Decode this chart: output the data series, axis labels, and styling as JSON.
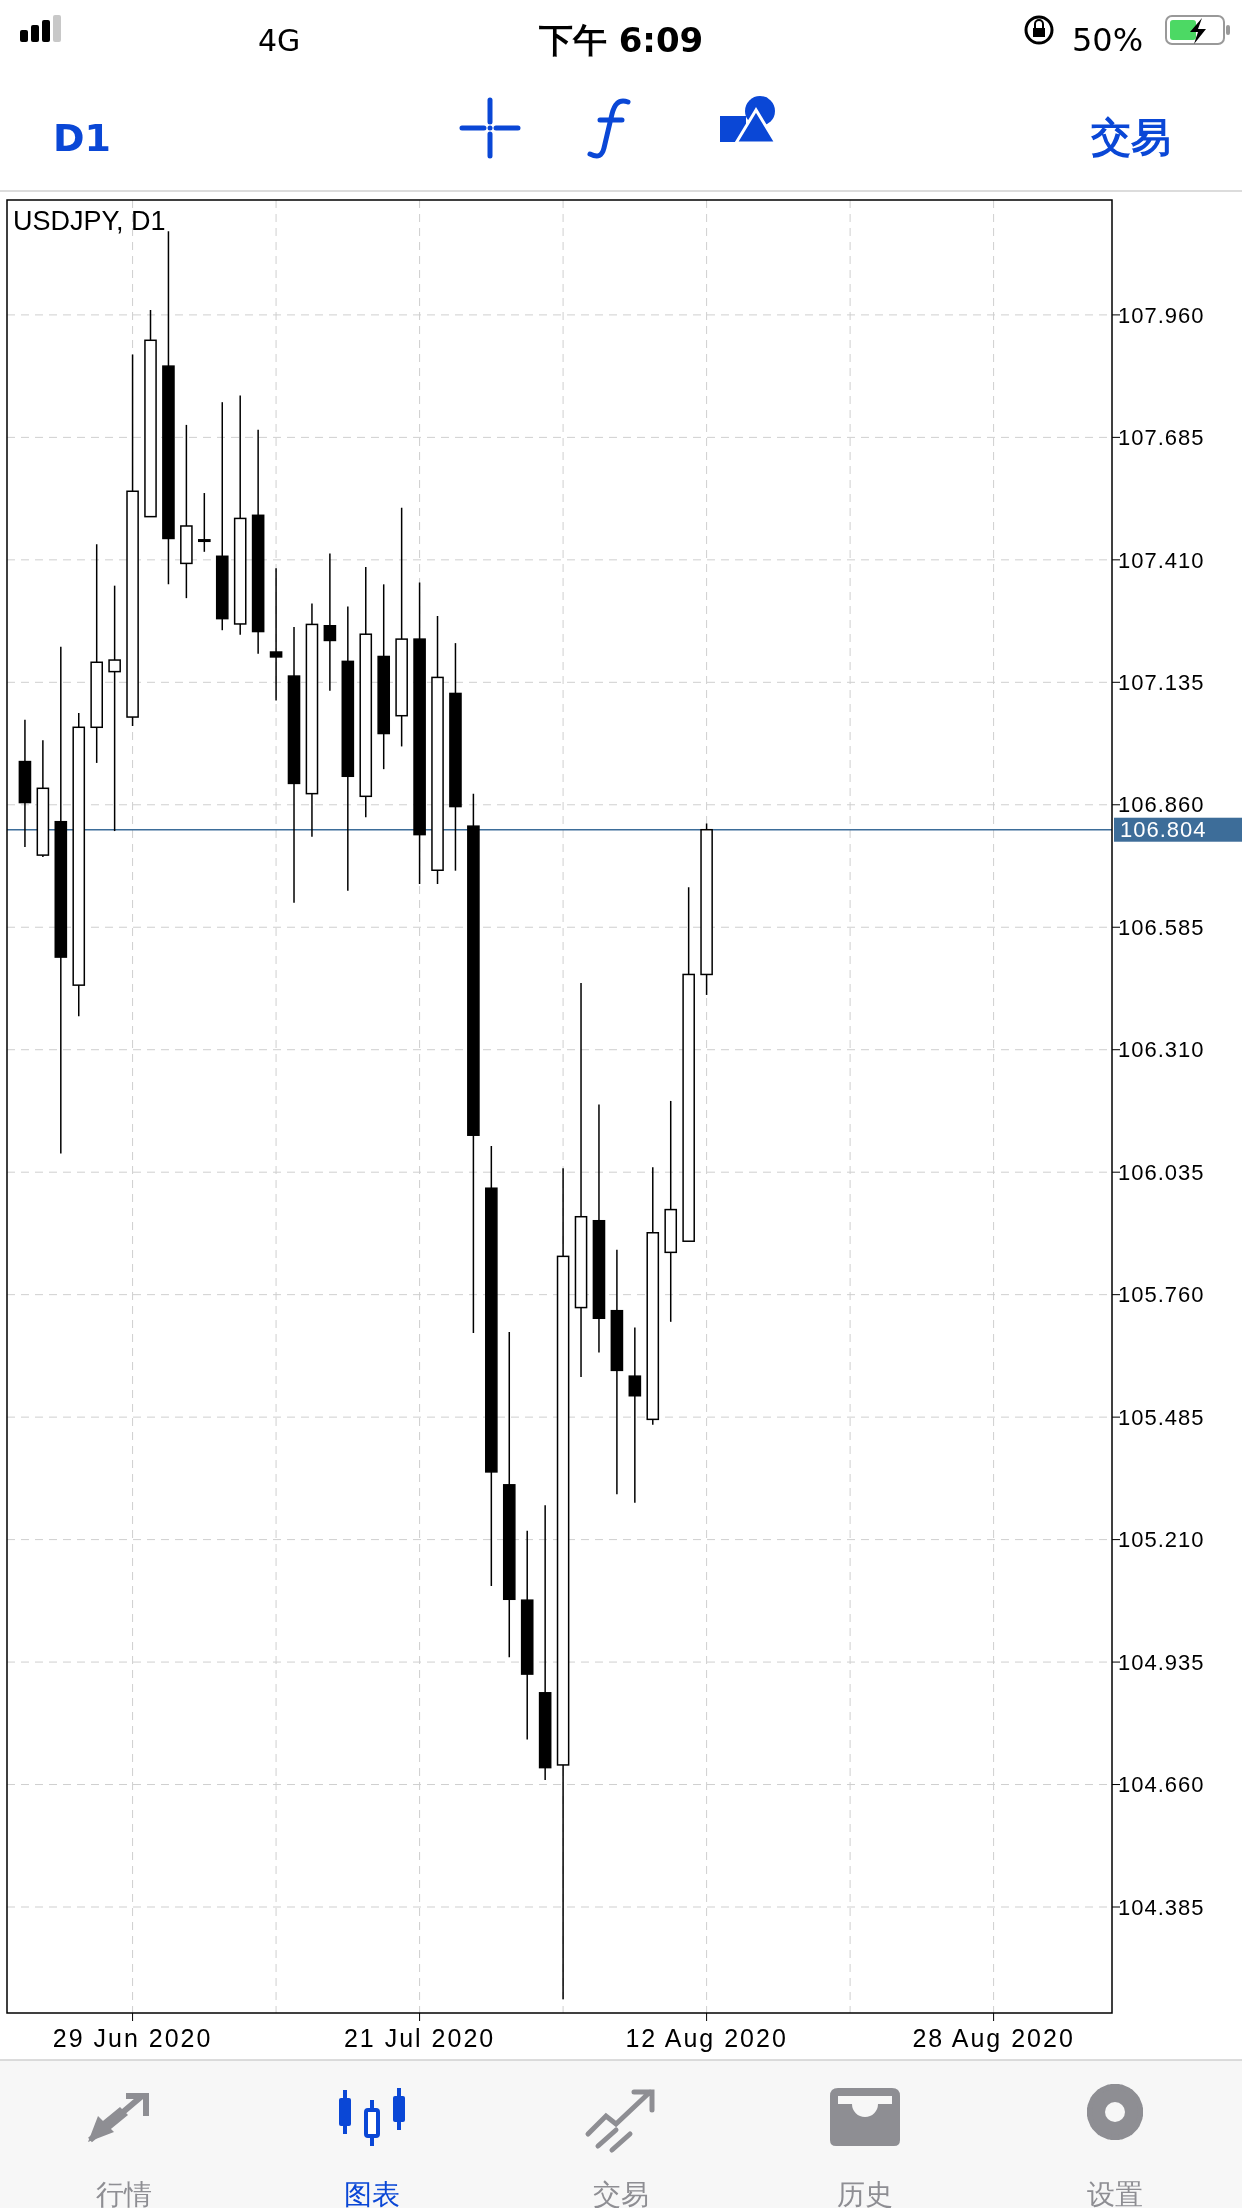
{
  "chart_data": {
    "type": "candlestick",
    "title": "USDJPY, D1",
    "categories": [
      null,
      null,
      null,
      null,
      null,
      null,
      "29 Jun 2020",
      null,
      null,
      null,
      null,
      null,
      null,
      null,
      null,
      null,
      null,
      null,
      null,
      null,
      null,
      null,
      "21 Jul 2020",
      null,
      null,
      null,
      null,
      null,
      null,
      null,
      null,
      null,
      null,
      null,
      null,
      null,
      null,
      null,
      "12 Aug 2020",
      null,
      null,
      null,
      null,
      null,
      null,
      null,
      null,
      null,
      null,
      null,
      null,
      null,
      null,
      null,
      "28 Aug 2020",
      null,
      null,
      null,
      null,
      null,
      null
    ],
    "ohlc": [
      [
        106.957,
        107.051,
        106.765,
        106.865
      ],
      [
        106.747,
        107.005,
        106.743,
        106.897
      ],
      [
        106.822,
        107.215,
        106.077,
        106.518
      ],
      [
        106.455,
        107.066,
        106.385,
        107.034
      ],
      [
        107.034,
        107.445,
        106.954,
        107.18
      ],
      [
        107.159,
        107.352,
        106.801,
        107.185
      ],
      [
        107.057,
        107.871,
        107.037,
        107.564
      ],
      [
        107.507,
        107.971,
        107.507,
        107.903
      ],
      [
        107.845,
        108.148,
        107.355,
        107.458
      ],
      [
        107.402,
        107.713,
        107.324,
        107.486
      ],
      [
        107.452,
        107.56,
        107.428,
        107.455
      ],
      [
        107.418,
        107.764,
        107.252,
        107.278
      ],
      [
        107.266,
        107.779,
        107.242,
        107.503
      ],
      [
        107.51,
        107.702,
        107.199,
        107.249
      ],
      [
        107.203,
        107.391,
        107.094,
        107.192
      ],
      [
        107.149,
        107.259,
        106.64,
        106.908
      ],
      [
        106.885,
        107.312,
        106.788,
        107.265
      ],
      [
        107.262,
        107.424,
        107.116,
        107.229
      ],
      [
        107.182,
        107.305,
        106.667,
        106.924
      ],
      [
        106.879,
        107.394,
        106.832,
        107.243
      ],
      [
        107.193,
        107.355,
        106.94,
        107.02
      ],
      [
        107.06,
        107.527,
        106.991,
        107.232
      ],
      [
        107.232,
        107.359,
        106.682,
        106.793
      ],
      [
        106.713,
        107.284,
        106.682,
        107.146
      ],
      [
        107.11,
        107.223,
        106.712,
        106.856
      ],
      [
        106.812,
        106.885,
        105.674,
        106.118
      ],
      [
        105.999,
        106.094,
        105.106,
        105.362
      ],
      [
        105.333,
        105.676,
        104.946,
        105.076
      ],
      [
        105.074,
        105.23,
        104.761,
        104.908
      ],
      [
        104.866,
        105.287,
        104.67,
        104.698
      ],
      [
        104.704,
        106.044,
        104.178,
        105.846
      ],
      [
        105.731,
        106.46,
        105.575,
        105.935
      ],
      [
        105.926,
        106.187,
        105.63,
        105.707
      ],
      [
        105.724,
        105.861,
        105.312,
        105.59
      ],
      [
        105.577,
        105.686,
        105.293,
        105.533
      ],
      [
        105.48,
        106.046,
        105.468,
        105.899
      ],
      [
        105.855,
        106.195,
        105.699,
        105.951
      ],
      [
        105.88,
        106.675,
        105.88,
        106.479
      ],
      [
        106.479,
        106.818,
        106.433,
        106.804
      ],
      null,
      null,
      null,
      null,
      null,
      null,
      null,
      null,
      null,
      null,
      null,
      null,
      null,
      null,
      null,
      null,
      null,
      null,
      null,
      null,
      null,
      null
    ],
    "ylim": [
      104.147,
      108.218
    ],
    "yticks": [
      104.385,
      {
        "value": 104.66,
        "label": "104.660"
      },
      104.935,
      {
        "value": 105.21,
        "label": "105.210"
      },
      105.485,
      {
        "value": 105.76,
        "label": "105.760"
      },
      106.035,
      {
        "value": 106.31,
        "label": "106.310"
      },
      106.585,
      {
        "value": 106.86,
        "label": "106.860"
      },
      107.135,
      {
        "value": 107.41,
        "label": "107.410"
      },
      107.685,
      {
        "value": 107.96,
        "label": "107.960"
      }
    ],
    "grid": true,
    "ref_lines": [
      {
        "axis": "y",
        "value": 106.804,
        "label": "106.804",
        "color": "#3d6d99"
      }
    ],
    "annotations": [
      "下午 6:09",
      "4G",
      "50%",
      "D1",
      "交易",
      "行情",
      "图表",
      "交易",
      "历史",
      "设置"
    ]
  }
}
